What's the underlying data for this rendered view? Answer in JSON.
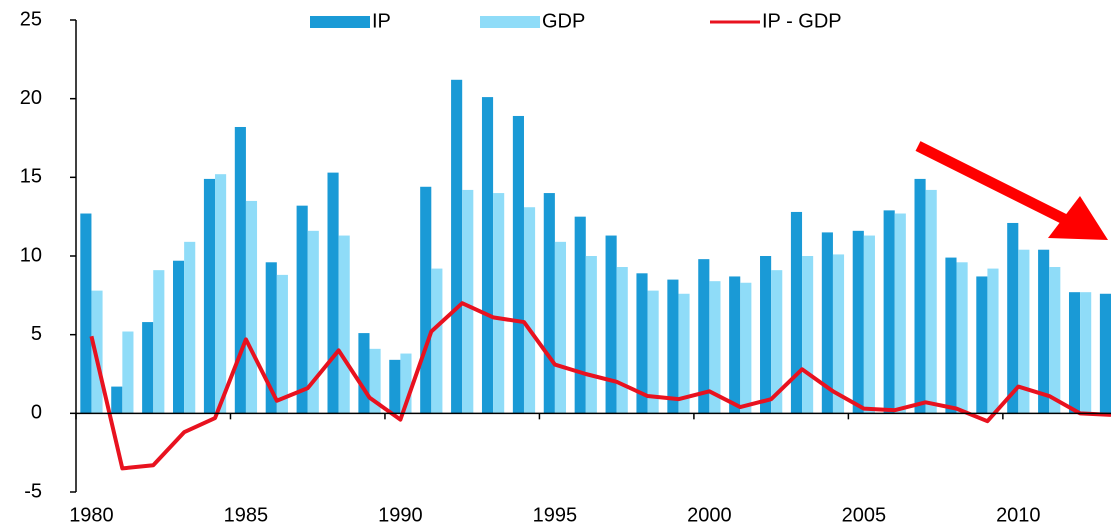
{
  "chart_data": {
    "type": "bar_line",
    "x": [
      1980,
      1981,
      1982,
      1983,
      1984,
      1985,
      1986,
      1987,
      1988,
      1989,
      1990,
      1991,
      1992,
      1993,
      1994,
      1995,
      1996,
      1997,
      1998,
      1999,
      2000,
      2001,
      2002,
      2003,
      2004,
      2005,
      2006,
      2007,
      2008,
      2009,
      2010,
      2011,
      2012,
      2013
    ],
    "series": [
      {
        "name": "IP",
        "color": "#1a9ad6",
        "kind": "bar",
        "values": [
          12.7,
          1.7,
          5.8,
          9.7,
          14.9,
          18.2,
          9.6,
          13.2,
          15.3,
          5.1,
          3.4,
          14.4,
          21.2,
          20.1,
          18.9,
          14.0,
          12.5,
          11.3,
          8.9,
          8.5,
          9.8,
          8.7,
          10.0,
          12.8,
          11.5,
          11.6,
          12.9,
          14.9,
          9.9,
          8.7,
          12.1,
          10.4,
          7.7,
          7.6
        ]
      },
      {
        "name": "GDP",
        "color": "#8fdcf8",
        "kind": "bar",
        "values": [
          7.8,
          5.2,
          9.1,
          10.9,
          15.2,
          13.5,
          8.8,
          11.6,
          11.3,
          4.1,
          3.8,
          9.2,
          14.2,
          14.0,
          13.1,
          10.9,
          10.0,
          9.3,
          7.8,
          7.6,
          8.4,
          8.3,
          9.1,
          10.0,
          10.1,
          11.3,
          12.7,
          14.2,
          9.6,
          9.2,
          10.4,
          9.3,
          7.7,
          7.7
        ]
      },
      {
        "name": "IP - GDP",
        "color": "#e8121f",
        "kind": "line",
        "values": [
          4.9,
          -3.5,
          -3.3,
          -1.2,
          -0.3,
          4.7,
          0.8,
          1.6,
          4.0,
          1.0,
          -0.4,
          5.2,
          7.0,
          6.1,
          5.8,
          3.1,
          2.5,
          2.0,
          1.1,
          0.9,
          1.4,
          0.4,
          0.9,
          2.8,
          1.4,
          0.3,
          0.2,
          0.7,
          0.3,
          -0.5,
          1.7,
          1.1,
          0.0,
          -0.1
        ]
      }
    ],
    "xlim": [
      1979.5,
      2013
    ],
    "xticks": [
      1980,
      1985,
      1990,
      1995,
      2000,
      2005,
      2010
    ],
    "ylim": [
      -5,
      25
    ],
    "yticks": [
      -5,
      0,
      5,
      10,
      15,
      20,
      25
    ],
    "legend": "top"
  }
}
